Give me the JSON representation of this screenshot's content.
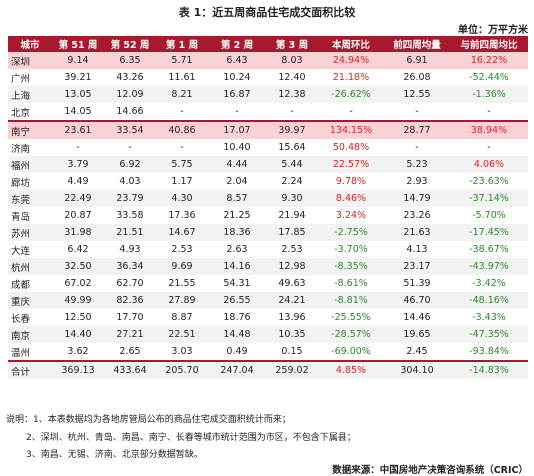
{
  "title": "表 1：近五周商品住宅成交面积比较",
  "unit": "单位：万平方米",
  "headers": [
    "城市",
    "第 51 周",
    "第 52 周",
    "第 1 周",
    "第 2 周",
    "第 3 周",
    "本周环比",
    "前四周均量",
    "与前四周均比"
  ],
  "rows": [
    {
      "city": "深圳",
      "w51": "9.14",
      "w52": "6.35",
      "w1": "5.71",
      "w2": "6.43",
      "w3": "8.03",
      "wow": "24.94%",
      "avg4": "6.91",
      "vsavg": "16.22%",
      "wow_sign": "pos",
      "vsavg_sign": "pos",
      "style": "hl"
    },
    {
      "city": "广州",
      "w51": "39.21",
      "w52": "43.26",
      "w1": "11.61",
      "w2": "10.24",
      "w3": "12.40",
      "wow": "21.18%",
      "avg4": "26.08",
      "vsavg": "-52.44%",
      "wow_sign": "pos",
      "vsavg_sign": "neg",
      "style": "even"
    },
    {
      "city": "上海",
      "w51": "13.05",
      "w52": "12.09",
      "w1": "8.21",
      "w2": "16.87",
      "w3": "12.38",
      "wow": "-26.62%",
      "avg4": "12.55",
      "vsavg": "-1.36%",
      "wow_sign": "neg",
      "vsavg_sign": "neg",
      "style": "odd"
    },
    {
      "city": "北京",
      "w51": "14.05",
      "w52": "14.66",
      "w1": "-",
      "w2": "-",
      "w3": "-",
      "wow": "-",
      "avg4": "-",
      "vsavg": "-",
      "wow_sign": "neu",
      "vsavg_sign": "neu",
      "style": "even"
    },
    {
      "city": "南宁",
      "w51": "23.61",
      "w52": "33.54",
      "w1": "40.86",
      "w2": "17.07",
      "w3": "39.97",
      "wow": "134.15%",
      "avg4": "28.77",
      "vsavg": "38.94%",
      "wow_sign": "pos",
      "vsavg_sign": "pos",
      "style": "hl",
      "sep": true
    },
    {
      "city": "济南",
      "w51": "-",
      "w52": "-",
      "w1": "-",
      "w2": "10.40",
      "w3": "15.64",
      "wow": "50.48%",
      "avg4": "-",
      "vsavg": "-",
      "wow_sign": "pos",
      "vsavg_sign": "neu",
      "style": "even"
    },
    {
      "city": "福州",
      "w51": "3.79",
      "w52": "6.92",
      "w1": "5.75",
      "w2": "4.44",
      "w3": "5.44",
      "wow": "22.57%",
      "avg4": "5.23",
      "vsavg": "4.06%",
      "wow_sign": "pos",
      "vsavg_sign": "pos",
      "style": "odd"
    },
    {
      "city": "廊坊",
      "w51": "4.49",
      "w52": "4.03",
      "w1": "1.17",
      "w2": "2.04",
      "w3": "2.24",
      "wow": "9.78%",
      "avg4": "2.93",
      "vsavg": "-23.63%",
      "wow_sign": "pos",
      "vsavg_sign": "neg",
      "style": "even"
    },
    {
      "city": "东莞",
      "w51": "22.49",
      "w52": "23.79",
      "w1": "4.30",
      "w2": "8.57",
      "w3": "9.30",
      "wow": "8.46%",
      "avg4": "14.79",
      "vsavg": "-37.14%",
      "wow_sign": "pos",
      "vsavg_sign": "neg",
      "style": "odd"
    },
    {
      "city": "青岛",
      "w51": "20.87",
      "w52": "33.58",
      "w1": "17.36",
      "w2": "21.25",
      "w3": "21.94",
      "wow": "3.24%",
      "avg4": "23.26",
      "vsavg": "-5.70%",
      "wow_sign": "pos",
      "vsavg_sign": "neg",
      "style": "even"
    },
    {
      "city": "苏州",
      "w51": "31.98",
      "w52": "21.51",
      "w1": "14.67",
      "w2": "18.36",
      "w3": "17.85",
      "wow": "-2.75%",
      "avg4": "21.63",
      "vsavg": "-17.45%",
      "wow_sign": "neg",
      "vsavg_sign": "neg",
      "style": "odd"
    },
    {
      "city": "大连",
      "w51": "6.42",
      "w52": "4.93",
      "w1": "2.53",
      "w2": "2.63",
      "w3": "2.53",
      "wow": "-3.70%",
      "avg4": "4.13",
      "vsavg": "-38.67%",
      "wow_sign": "neg",
      "vsavg_sign": "neg",
      "style": "even"
    },
    {
      "city": "杭州",
      "w51": "32.50",
      "w52": "36.34",
      "w1": "9.69",
      "w2": "14.16",
      "w3": "12.98",
      "wow": "-8.35%",
      "avg4": "23.17",
      "vsavg": "-43.97%",
      "wow_sign": "neg",
      "vsavg_sign": "neg",
      "style": "odd"
    },
    {
      "city": "成都",
      "w51": "67.02",
      "w52": "62.70",
      "w1": "21.55",
      "w2": "54.31",
      "w3": "49.63",
      "wow": "-8.61%",
      "avg4": "51.39",
      "vsavg": "-3.42%",
      "wow_sign": "neg",
      "vsavg_sign": "neg",
      "style": "even"
    },
    {
      "city": "重庆",
      "w51": "49.99",
      "w52": "82.36",
      "w1": "27.89",
      "w2": "26.55",
      "w3": "24.21",
      "wow": "-8.81%",
      "avg4": "46.70",
      "vsavg": "-48.16%",
      "wow_sign": "neg",
      "vsavg_sign": "neg",
      "style": "odd"
    },
    {
      "city": "长春",
      "w51": "12.50",
      "w52": "17.70",
      "w1": "8.87",
      "w2": "18.76",
      "w3": "13.96",
      "wow": "-25.55%",
      "avg4": "14.46",
      "vsavg": "-3.43%",
      "wow_sign": "neg",
      "vsavg_sign": "neg",
      "style": "even"
    },
    {
      "city": "南京",
      "w51": "14.40",
      "w52": "27.21",
      "w1": "22.51",
      "w2": "14.48",
      "w3": "10.35",
      "wow": "-28.57%",
      "avg4": "19.65",
      "vsavg": "-47.35%",
      "wow_sign": "neg",
      "vsavg_sign": "neg",
      "style": "odd"
    },
    {
      "city": "温州",
      "w51": "3.62",
      "w52": "2.65",
      "w1": "3.03",
      "w2": "0.49",
      "w3": "0.15",
      "wow": "-69.00%",
      "avg4": "2.45",
      "vsavg": "-93.84%",
      "wow_sign": "neg",
      "vsavg_sign": "neg",
      "style": "even"
    }
  ],
  "total": {
    "city": "合计",
    "w51": "369.13",
    "w52": "433.64",
    "w1": "205.70",
    "w2": "247.04",
    "w3": "259.02",
    "wow": "4.85%",
    "avg4": "304.10",
    "vsavg": "-14.83%",
    "wow_sign": "pos",
    "vsavg_sign": "neg"
  },
  "notes": [
    "说明：1、本表数据均为各地房管局公布的商品住宅成交面积统计而来；",
    "2、深圳、杭州、青岛、南昌、南宁、长春等城市统计范围为市区，不包含下属县；",
    "3、南昌、无锡、济南、北京部分数据暂缺。"
  ],
  "source": "数据来源：中国房地产决策咨询系统（CRIC）",
  "colors": {
    "header_bg": "#a6192e",
    "highlight_row": "#f9d2d5",
    "positive": "#e02020",
    "negative": "#2a8a2a",
    "zebra": "#f2f2f2"
  }
}
